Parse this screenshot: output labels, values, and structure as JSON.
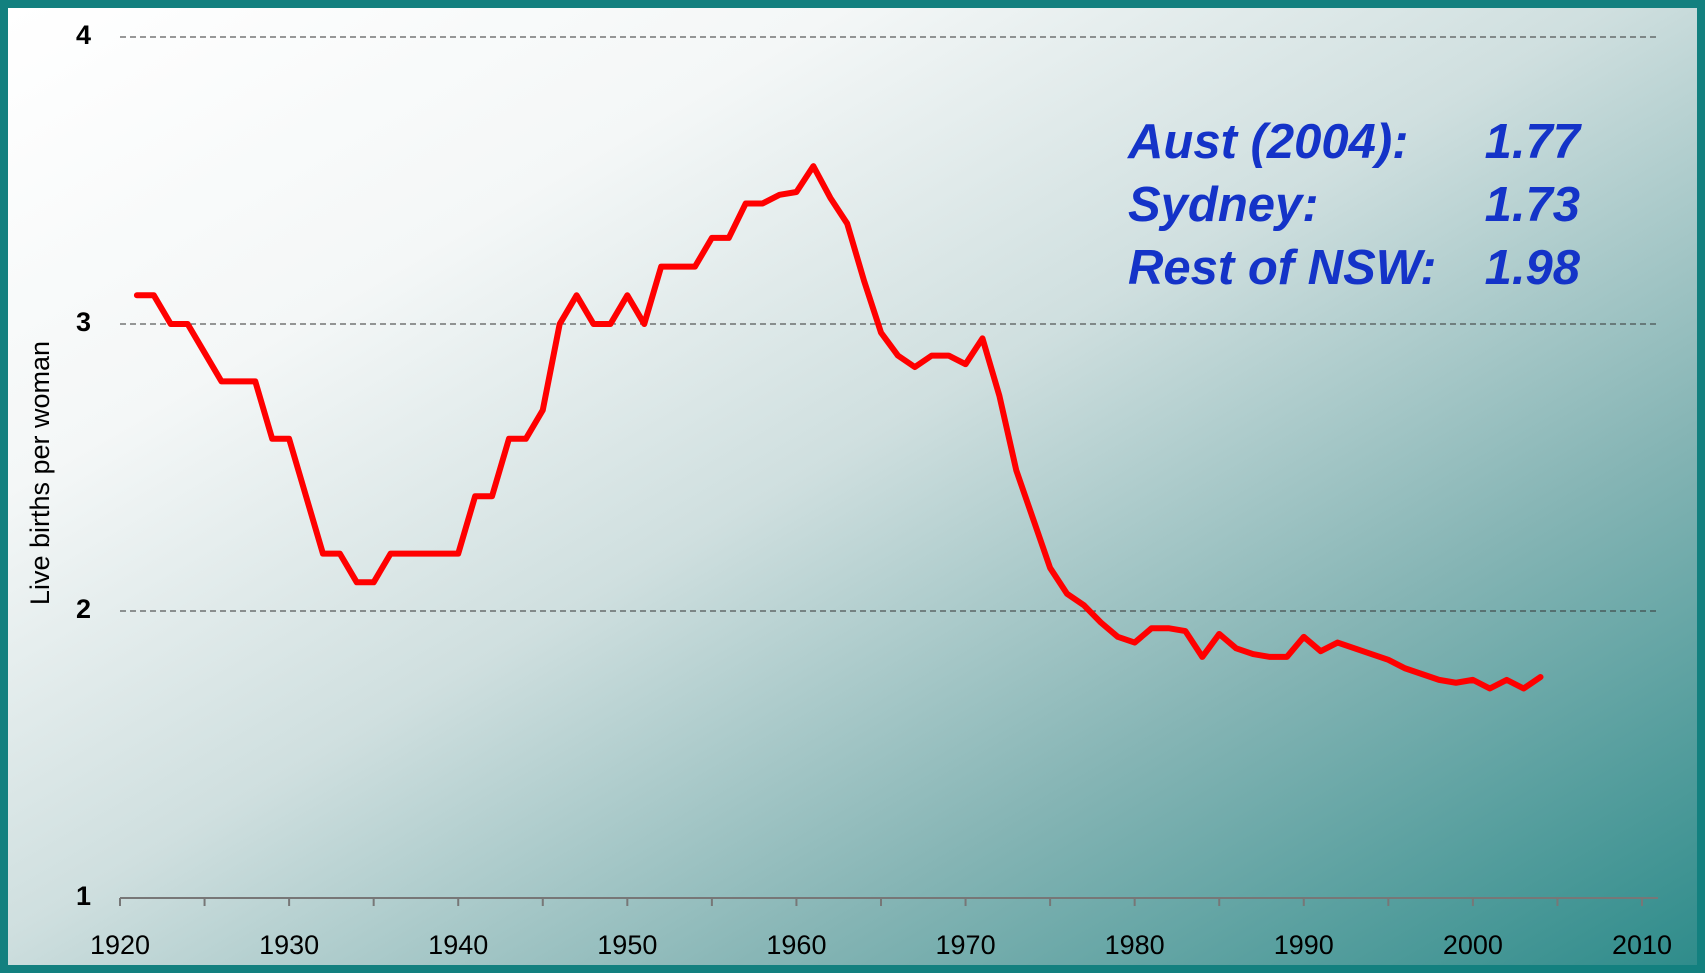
{
  "chart_data": {
    "type": "line",
    "y_label": "Live births per woman",
    "x": [
      1921,
      1922,
      1923,
      1924,
      1925,
      1926,
      1927,
      1928,
      1929,
      1930,
      1931,
      1932,
      1933,
      1934,
      1935,
      1936,
      1937,
      1938,
      1939,
      1940,
      1941,
      1942,
      1943,
      1944,
      1945,
      1946,
      1947,
      1948,
      1949,
      1950,
      1951,
      1952,
      1953,
      1954,
      1955,
      1956,
      1957,
      1958,
      1959,
      1960,
      1961,
      1962,
      1963,
      1964,
      1965,
      1966,
      1967,
      1968,
      1969,
      1970,
      1971,
      1972,
      1973,
      1974,
      1975,
      1976,
      1977,
      1978,
      1979,
      1980,
      1981,
      1982,
      1983,
      1984,
      1985,
      1986,
      1987,
      1988,
      1989,
      1990,
      1991,
      1992,
      1993,
      1994,
      1995,
      1996,
      1997,
      1998,
      1999,
      2000,
      2001,
      2002,
      2003,
      2004
    ],
    "series": [
      {
        "color": "#ff0000",
        "values": [
          3.1,
          3.1,
          3.0,
          3.0,
          2.9,
          2.8,
          2.8,
          2.8,
          2.6,
          2.6,
          2.4,
          2.2,
          2.2,
          2.1,
          2.1,
          2.2,
          2.2,
          2.2,
          2.2,
          2.2,
          2.4,
          2.4,
          2.6,
          2.6,
          2.7,
          3.0,
          3.1,
          3.0,
          3.0,
          3.1,
          3.0,
          3.2,
          3.2,
          3.2,
          3.3,
          3.3,
          3.42,
          3.42,
          3.45,
          3.46,
          3.55,
          3.44,
          3.35,
          3.15,
          2.97,
          2.89,
          2.85,
          2.89,
          2.89,
          2.86,
          2.95,
          2.75,
          2.49,
          2.32,
          2.15,
          2.06,
          2.02,
          1.96,
          1.91,
          1.89,
          1.94,
          1.94,
          1.93,
          1.84,
          1.92,
          1.87,
          1.85,
          1.84,
          1.84,
          1.91,
          1.86,
          1.89,
          1.87,
          1.85,
          1.83,
          1.8,
          1.78,
          1.76,
          1.75,
          1.76,
          1.73,
          1.76,
          1.73,
          1.77
        ]
      }
    ],
    "xlim": [
      1920,
      2010
    ],
    "xticks": [
      1920,
      1930,
      1940,
      1950,
      1960,
      1970,
      1980,
      1990,
      2000,
      2010
    ],
    "xminorticks": [
      1925,
      1935,
      1945,
      1955,
      1965,
      1975,
      1985,
      1995,
      2005
    ],
    "ylim": [
      1,
      4
    ],
    "yticks": [
      1,
      2,
      3,
      4
    ],
    "grid": true,
    "annotations": [
      {
        "label": "Aust (2004):",
        "value": 1.77
      },
      {
        "label": "Sydney:",
        "value": 1.73
      },
      {
        "label": "Rest of NSW:",
        "value": 1.98
      }
    ]
  }
}
